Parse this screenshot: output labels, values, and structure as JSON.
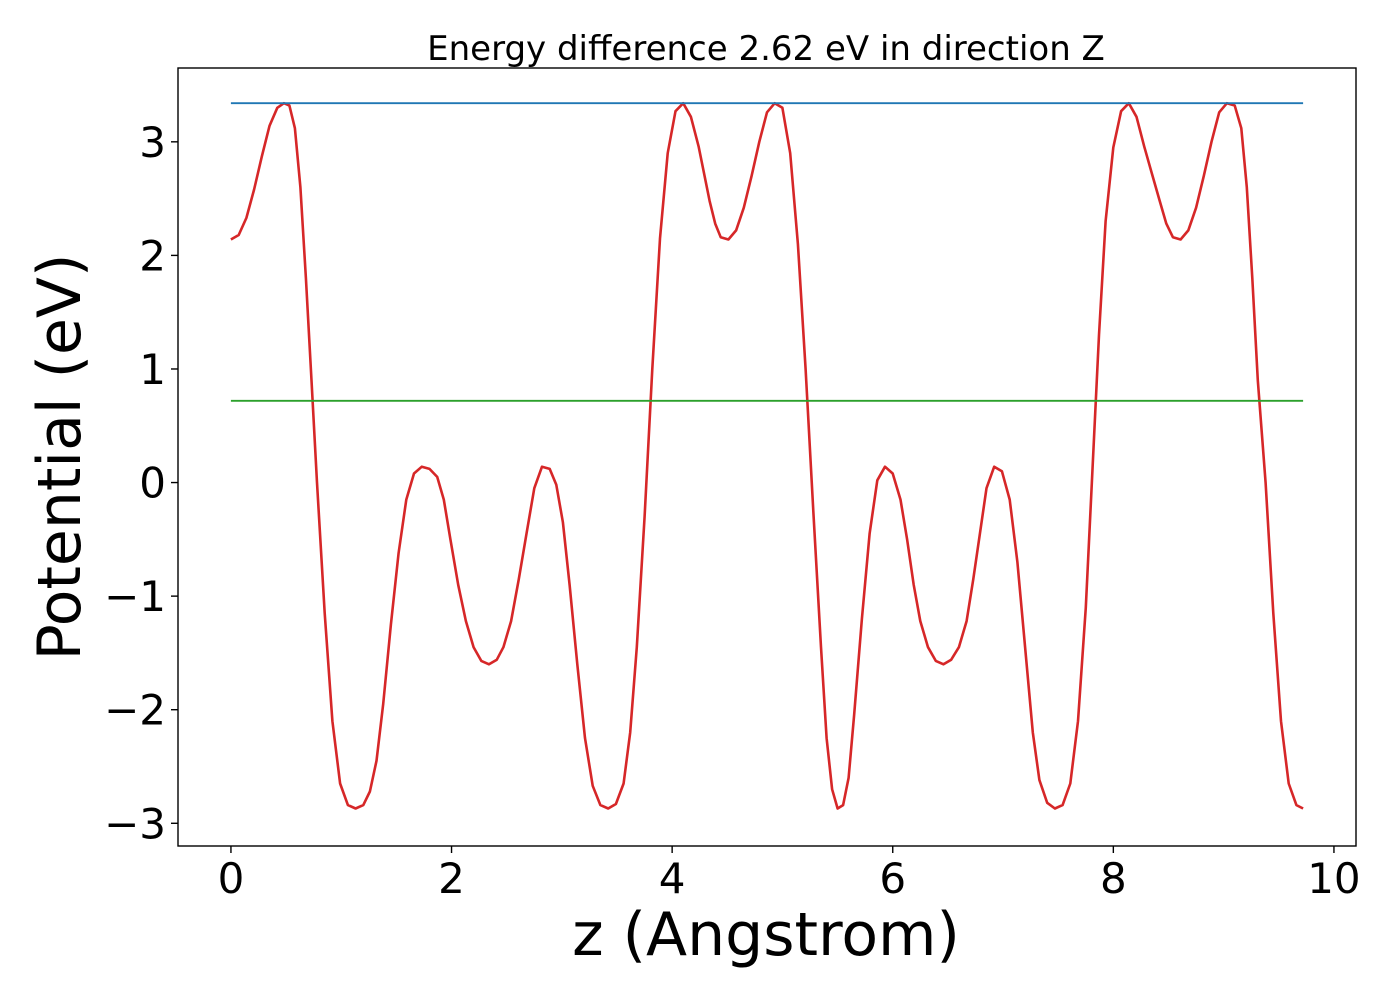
{
  "chart_data": {
    "type": "line",
    "title": "Energy difference 2.62 eV in direction Z",
    "xlabel": "z (Angstrom)",
    "ylabel": "Potential (eV)",
    "xlim": [
      -0.48,
      10.2
    ],
    "ylim": [
      -3.2,
      3.65
    ],
    "xticks": [
      0,
      2,
      4,
      6,
      8,
      10
    ],
    "yticks": [
      -3,
      -2,
      -1,
      0,
      1,
      2,
      3
    ],
    "ytick_labels": [
      "−3",
      "−2",
      "−1",
      "0",
      "1",
      "2",
      "3"
    ],
    "grid": false,
    "legend": "none",
    "series": [
      {
        "color": "#d62728",
        "x": [
          0.0,
          0.07,
          0.14,
          0.21,
          0.28,
          0.35,
          0.42,
          0.48,
          0.53,
          0.58,
          0.63,
          0.68,
          0.73,
          0.78,
          0.85,
          0.92,
          0.99,
          1.06,
          1.13,
          1.2,
          1.26,
          1.32,
          1.38,
          1.45,
          1.52,
          1.59,
          1.66,
          1.73,
          1.8,
          1.87,
          1.93,
          1.99,
          2.06,
          2.13,
          2.2,
          2.27,
          2.34,
          2.41,
          2.47,
          2.54,
          2.61,
          2.68,
          2.75,
          2.82,
          2.89,
          2.95,
          3.01,
          3.07,
          3.14,
          3.21,
          3.28,
          3.35,
          3.42,
          3.49,
          3.56,
          3.62,
          3.68,
          3.75,
          3.82,
          3.89,
          3.96,
          4.03,
          4.1,
          4.17,
          4.24,
          4.29,
          4.34,
          4.39,
          4.44,
          4.51,
          4.58,
          4.65,
          4.72,
          4.79,
          4.86,
          4.93,
          5.0,
          5.07,
          5.14,
          5.21,
          5.28,
          5.35,
          5.4,
          5.45,
          5.5,
          5.55,
          5.6,
          5.65,
          5.72,
          5.79,
          5.86,
          5.93,
          6.0,
          6.07,
          6.13,
          6.19,
          6.25,
          6.32,
          6.39,
          6.46,
          6.53,
          6.6,
          6.67,
          6.73,
          6.79,
          6.85,
          6.92,
          6.99,
          7.06,
          7.13,
          7.2,
          7.27,
          7.33,
          7.4,
          7.47,
          7.54,
          7.61,
          7.68,
          7.75,
          7.81,
          7.87,
          7.93,
          8.0,
          8.07,
          8.14,
          8.21,
          8.28,
          8.35,
          8.42,
          8.48,
          8.54,
          8.61,
          8.68,
          8.75,
          8.82,
          8.89,
          8.96,
          9.03,
          9.1,
          9.16,
          9.21,
          9.26,
          9.31,
          9.38,
          9.45,
          9.52,
          9.59,
          9.66,
          9.72
        ],
        "y": [
          2.14,
          2.18,
          2.33,
          2.58,
          2.87,
          3.14,
          3.3,
          3.34,
          3.32,
          3.12,
          2.6,
          1.8,
          0.9,
          0.0,
          -1.15,
          -2.1,
          -2.65,
          -2.84,
          -2.87,
          -2.84,
          -2.72,
          -2.45,
          -1.95,
          -1.25,
          -0.62,
          -0.15,
          0.08,
          0.14,
          0.12,
          0.05,
          -0.15,
          -0.5,
          -0.9,
          -1.22,
          -1.45,
          -1.57,
          -1.6,
          -1.56,
          -1.45,
          -1.22,
          -0.85,
          -0.45,
          -0.05,
          0.14,
          0.12,
          -0.02,
          -0.35,
          -0.9,
          -1.6,
          -2.25,
          -2.67,
          -2.84,
          -2.87,
          -2.83,
          -2.65,
          -2.2,
          -1.45,
          -0.3,
          1.0,
          2.15,
          2.9,
          3.27,
          3.34,
          3.22,
          2.96,
          2.72,
          2.48,
          2.28,
          2.16,
          2.14,
          2.22,
          2.42,
          2.7,
          3.0,
          3.26,
          3.34,
          3.3,
          2.9,
          2.1,
          1.0,
          -0.25,
          -1.45,
          -2.25,
          -2.7,
          -2.87,
          -2.84,
          -2.6,
          -2.05,
          -1.2,
          -0.45,
          0.02,
          0.14,
          0.08,
          -0.15,
          -0.5,
          -0.9,
          -1.22,
          -1.45,
          -1.57,
          -1.6,
          -1.56,
          -1.45,
          -1.22,
          -0.85,
          -0.45,
          -0.05,
          0.14,
          0.1,
          -0.15,
          -0.7,
          -1.45,
          -2.2,
          -2.62,
          -2.82,
          -2.87,
          -2.84,
          -2.65,
          -2.1,
          -1.1,
          0.1,
          1.3,
          2.3,
          2.95,
          3.27,
          3.34,
          3.22,
          2.96,
          2.72,
          2.48,
          2.28,
          2.16,
          2.14,
          2.22,
          2.42,
          2.7,
          3.0,
          3.26,
          3.34,
          3.32,
          3.12,
          2.6,
          1.8,
          0.9,
          0.0,
          -1.15,
          -2.1,
          -2.65,
          -2.84,
          -2.87
        ]
      },
      {
        "color": "#1f77b4",
        "x": [
          0.0,
          9.72
        ],
        "y": [
          3.34,
          3.34
        ]
      },
      {
        "color": "#2ca02c",
        "x": [
          0.0,
          9.72
        ],
        "y": [
          0.72,
          0.72
        ]
      }
    ]
  }
}
